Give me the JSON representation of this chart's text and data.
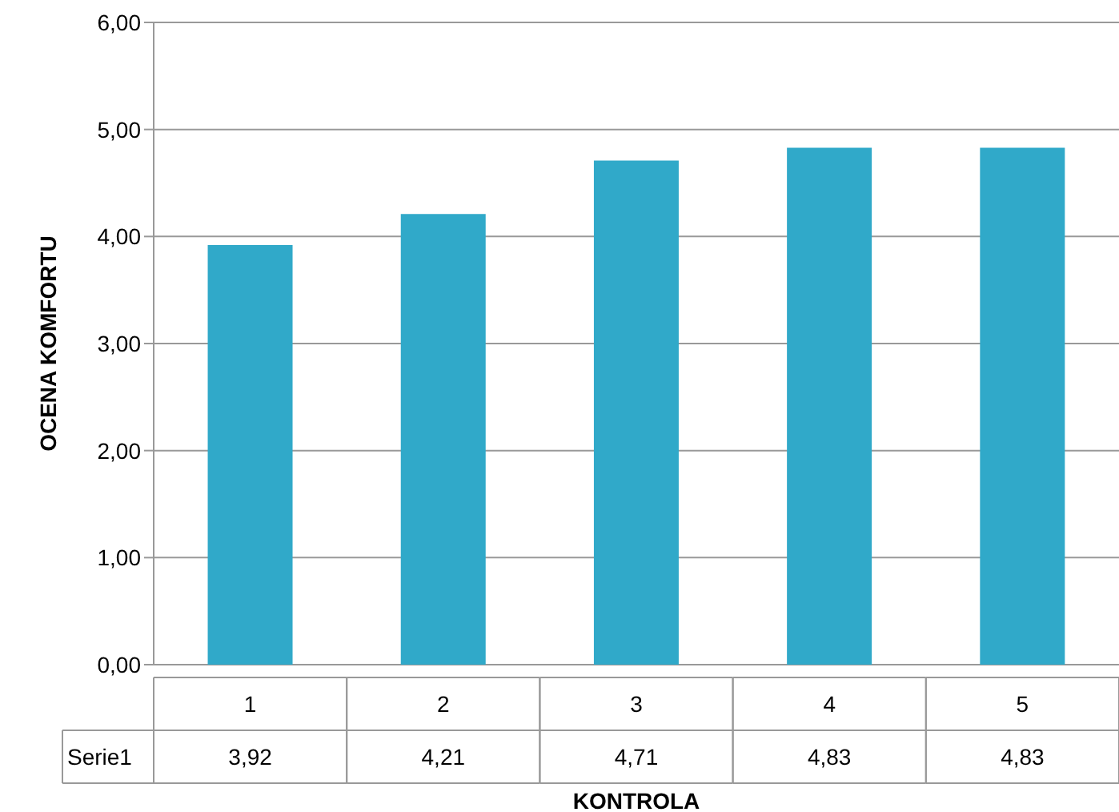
{
  "chart_data": {
    "type": "bar",
    "xlabel": "KONTROLA",
    "ylabel": "OCENA KOMFORTU",
    "categories": [
      "1",
      "2",
      "3",
      "4",
      "5"
    ],
    "series": [
      {
        "name": "Serie1",
        "color": "#30a9c9",
        "values": [
          3.92,
          4.21,
          4.71,
          4.83,
          4.83
        ],
        "value_labels": [
          "3,92",
          "4,21",
          "4,71",
          "4,83",
          "4,83"
        ]
      }
    ],
    "ylim": [
      0,
      6
    ],
    "yticks": [
      {
        "value": 0,
        "label": "0,00"
      },
      {
        "value": 1,
        "label": "1,00"
      },
      {
        "value": 2,
        "label": "2,00"
      },
      {
        "value": 3,
        "label": "3,00"
      },
      {
        "value": 4,
        "label": "4,00"
      },
      {
        "value": 5,
        "label": "5,00"
      },
      {
        "value": 6,
        "label": "6,00"
      }
    ],
    "grid": "y"
  }
}
